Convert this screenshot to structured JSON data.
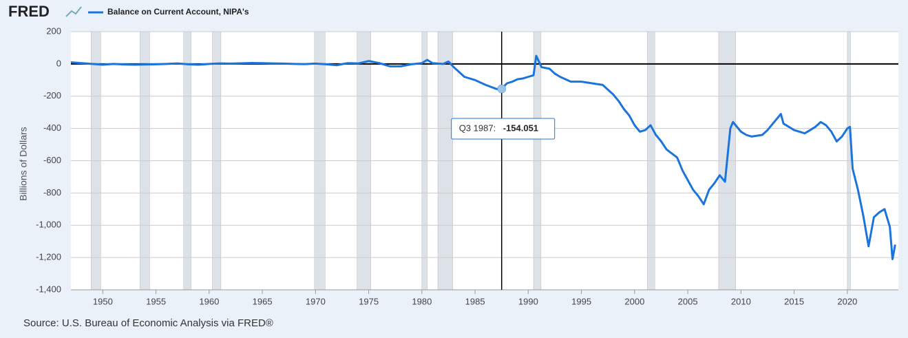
{
  "chart_data": {
    "type": "line",
    "brand": "FRED",
    "y_label": "Billions of Dollars",
    "source": "Source: U.S. Bureau of Economic Analysis via FRED®",
    "xlim": [
      1947,
      2024.8
    ],
    "xticks": [
      1950,
      1955,
      1960,
      1965,
      1970,
      1975,
      1980,
      1985,
      1990,
      1995,
      2000,
      2005,
      2010,
      2015,
      2020
    ],
    "ylim": [
      -1400,
      200
    ],
    "yticks": [
      200,
      0,
      -200,
      -400,
      -600,
      -800,
      {
        "value": -1000,
        "label": "-1,000"
      },
      {
        "value": -1200,
        "label": "-1,200"
      },
      {
        "value": -1400,
        "label": "-1,400"
      }
    ],
    "grid": true,
    "recession_color": "#dde2e8",
    "recessions": [
      [
        1948.9,
        1949.8
      ],
      [
        1953.5,
        1954.4
      ],
      [
        1957.6,
        1958.3
      ],
      [
        1960.3,
        1961.1
      ],
      [
        1969.9,
        1970.9
      ],
      [
        1973.9,
        1975.2
      ],
      [
        1980.0,
        1980.5
      ],
      [
        1981.5,
        1982.9
      ],
      [
        1990.5,
        1991.2
      ],
      [
        2001.2,
        2001.9
      ],
      [
        2007.9,
        2009.5
      ],
      [
        2020.0,
        2020.3
      ]
    ],
    "x": [
      1947,
      1948,
      1949,
      1950,
      1951,
      1952,
      1953,
      1954,
      1955,
      1956,
      1957,
      1958,
      1959,
      1960,
      1961,
      1962,
      1963,
      1964,
      1965,
      1966,
      1967,
      1968,
      1969,
      1970,
      1971,
      1972,
      1973,
      1974,
      1975,
      1976,
      1977,
      1978,
      1979,
      1980,
      1980.5,
      1981,
      1982,
      1982.5,
      1983,
      1984,
      1985,
      1986,
      1987,
      1987.5,
      1988,
      1988.5,
      1989,
      1989.5,
      1990,
      1990.5,
      1990.75,
      1991.25,
      1992,
      1992.5,
      1993,
      1994,
      1995,
      1996,
      1997,
      1998,
      1998.5,
      1999,
      1999.5,
      2000,
      2000.5,
      2001,
      2001.5,
      2002,
      2002.5,
      2003,
      2004,
      2004.5,
      2005,
      2005.5,
      2006,
      2006.5,
      2007,
      2007.5,
      2008,
      2008.5,
      2009,
      2009.25,
      2010,
      2010.5,
      2011,
      2012,
      2012.5,
      2013,
      2013.75,
      2014,
      2015,
      2015.5,
      2016,
      2017,
      2017.5,
      2018,
      2018.5,
      2019,
      2019.5,
      2020,
      2020.25,
      2020.5,
      2021,
      2021.5,
      2022,
      2022.5,
      2023,
      2023.5,
      2024,
      2024.25,
      2024.5
    ],
    "series": [
      {
        "name": "Balance on Current Account, NIPA's",
        "color": "#1a74dc",
        "values": [
          10,
          5,
          0,
          -5,
          0,
          -3,
          -5,
          -3,
          -2,
          0,
          3,
          -2,
          -5,
          0,
          3,
          2,
          4,
          6,
          5,
          3,
          2,
          0,
          -1,
          2,
          -2,
          -8,
          5,
          3,
          18,
          5,
          -15,
          -15,
          -2,
          5,
          25,
          5,
          0,
          15,
          -20,
          -80,
          -100,
          -130,
          -155,
          -154.051,
          -120,
          -110,
          -95,
          -90,
          -80,
          -70,
          50,
          -20,
          -30,
          -60,
          -80,
          -110,
          -110,
          -120,
          -130,
          -190,
          -230,
          -280,
          -320,
          -380,
          -420,
          -410,
          -380,
          -440,
          -480,
          -530,
          -580,
          -660,
          -720,
          -780,
          -820,
          -870,
          -780,
          -740,
          -690,
          -730,
          -400,
          -360,
          -420,
          -440,
          -450,
          -440,
          -410,
          -370,
          -310,
          -370,
          -410,
          -420,
          -430,
          -390,
          -360,
          -380,
          -420,
          -480,
          -450,
          -400,
          -390,
          -650,
          -780,
          -940,
          -1130,
          -950,
          -920,
          -900,
          -1010,
          -1210,
          -1120
        ]
      }
    ],
    "tooltip": {
      "x": 1987.5,
      "label": "Q3 1987:",
      "value": -154.051
    }
  }
}
